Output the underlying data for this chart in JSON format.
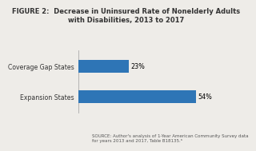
{
  "title_line1": "FIGURE 2:  Decrease in Uninsured Rate of Nonelderly Adults",
  "title_line2": "with Disabilities, 2013 to 2017",
  "categories": [
    "Expansion States",
    "Coverage Gap States"
  ],
  "values": [
    54,
    23
  ],
  "bar_color": "#2e75b6",
  "bar_labels": [
    "54%",
    "23%"
  ],
  "source_text": "SOURCE: Author's analysis of 1-Year American Community Survey data\nfor years 2013 and 2017, Table B18135.ᵃ",
  "background_color": "#eeece8",
  "xlim": [
    0,
    62
  ],
  "title_fontsize": 6.0,
  "label_fontsize": 5.6,
  "bar_label_fontsize": 5.8,
  "source_fontsize": 4.0,
  "bar_height": 0.42
}
